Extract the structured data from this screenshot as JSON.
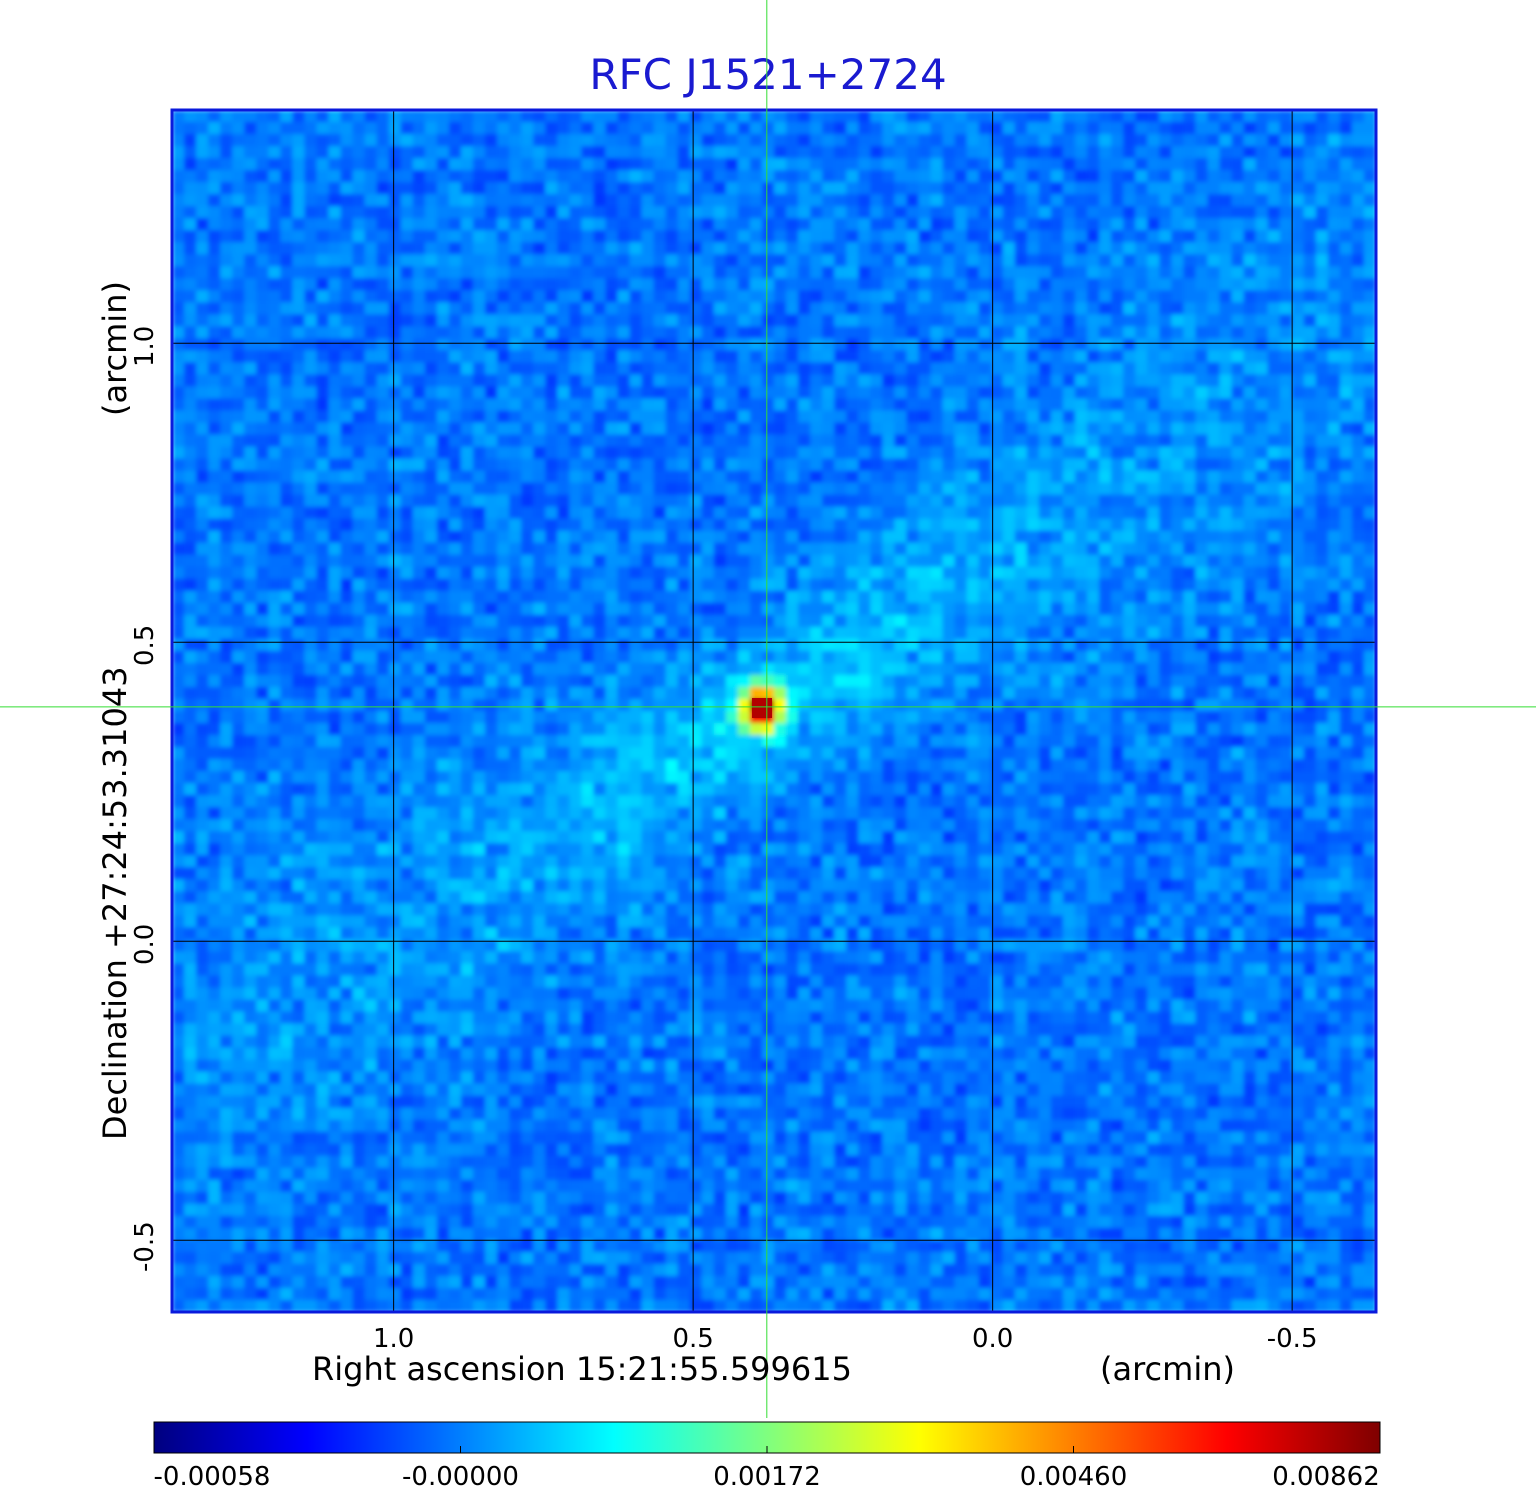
{
  "colors": {
    "title": "#1a1ad0",
    "frame": "#0a1adc",
    "grid": "#000000",
    "crosshair": "#33dd33",
    "cmap": [
      "#00007f",
      "#0000ff",
      "#007fff",
      "#00ffff",
      "#7fff7f",
      "#ffff00",
      "#ff7f00",
      "#ff0000",
      "#7f0000"
    ]
  },
  "chart_data": {
    "type": "heatmap",
    "title": "RFC J1521+2724",
    "xlabel": "Right ascension  15:21:55.599615",
    "xlabel_unit": "(arcmin)",
    "ylabel": "Declination  +27:24:53.31043",
    "ylabel_unit": "(arcmin)",
    "xlim": [
      1.37,
      -0.64
    ],
    "ylim": [
      -0.62,
      1.39
    ],
    "x_ticks": [
      {
        "value": 1.0,
        "label": "1.0"
      },
      {
        "value": 0.5,
        "label": "0.5"
      },
      {
        "value": 0.0,
        "label": "0.0"
      },
      {
        "value": -0.5,
        "label": "-0.5"
      }
    ],
    "y_ticks": [
      {
        "value": 1.0,
        "label": "1.0"
      },
      {
        "value": 0.5,
        "label": "0.5"
      },
      {
        "value": 0.0,
        "label": "0.0"
      },
      {
        "value": -0.5,
        "label": "-0.5"
      }
    ],
    "grid": true,
    "crosshair": {
      "x": 0.377,
      "y": 0.392
    },
    "peak": {
      "x": 0.385,
      "y": 0.39,
      "value": 0.00862
    },
    "colorbar": {
      "min": -0.00058,
      "max": 0.00862,
      "tick_labels": [
        "-0.00058",
        "-0.00000",
        "0.00172",
        "0.00460",
        "0.00862"
      ]
    }
  }
}
